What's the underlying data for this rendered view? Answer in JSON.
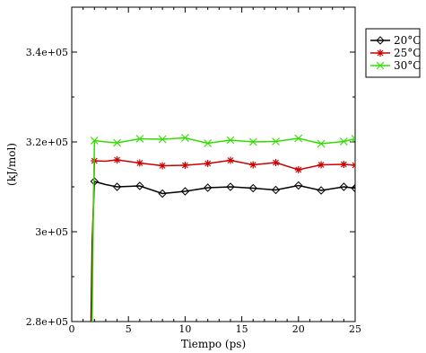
{
  "chart_data": {
    "type": "line",
    "title": "",
    "xlabel": "Tiempo (ps)",
    "ylabel": "(kJ/mol)",
    "xlim": [
      0,
      25
    ],
    "ylim": [
      280000,
      350000
    ],
    "grid": false,
    "legend_position": "top-right",
    "x_ticks": [
      0,
      5,
      10,
      15,
      20,
      25
    ],
    "x_tick_labels": [
      "0",
      "5",
      "10",
      "15",
      "20",
      "25"
    ],
    "y_ticks": [
      280000,
      300000,
      320000,
      340000
    ],
    "y_tick_labels": [
      "2.8e+05",
      "3e+05",
      "3.2e+05",
      "3.4e+05"
    ],
    "series": [
      {
        "name": "20°C",
        "color": "#000000",
        "marker": "diamond",
        "points": [
          [
            1.7,
            280000
          ],
          [
            1.8,
            298000
          ],
          [
            2,
            311200
          ],
          [
            3,
            310500
          ],
          [
            4,
            310000
          ],
          [
            6,
            310200
          ],
          [
            8,
            308500
          ],
          [
            10,
            309000
          ],
          [
            12,
            309800
          ],
          [
            14,
            310000
          ],
          [
            16,
            309700
          ],
          [
            18,
            309300
          ],
          [
            20,
            310300
          ],
          [
            22,
            309200
          ],
          [
            24,
            310000
          ],
          [
            25,
            309700
          ]
        ],
        "marker_x": [
          2,
          4,
          6,
          8,
          10,
          12,
          14,
          16,
          18,
          20,
          22,
          24,
          25
        ]
      },
      {
        "name": "25°C",
        "color": "#cc0000",
        "marker": "star",
        "points": [
          [
            1.75,
            280000
          ],
          [
            1.85,
            300000
          ],
          [
            2,
            315800
          ],
          [
            3,
            315700
          ],
          [
            4,
            316000
          ],
          [
            6,
            315300
          ],
          [
            8,
            314700
          ],
          [
            10,
            314800
          ],
          [
            12,
            315200
          ],
          [
            14,
            315900
          ],
          [
            16,
            314900
          ],
          [
            18,
            315400
          ],
          [
            20,
            313800
          ],
          [
            22,
            314900
          ],
          [
            24,
            315000
          ],
          [
            25,
            314800
          ]
        ],
        "marker_x": [
          2,
          4,
          6,
          8,
          10,
          12,
          14,
          16,
          18,
          20,
          22,
          24,
          25
        ]
      },
      {
        "name": "30°C",
        "color": "#33dd00",
        "marker": "x",
        "points": [
          [
            1.8,
            280000
          ],
          [
            1.9,
            302000
          ],
          [
            2,
            320300
          ],
          [
            3,
            320000
          ],
          [
            4,
            319800
          ],
          [
            6,
            320700
          ],
          [
            8,
            320600
          ],
          [
            10,
            320900
          ],
          [
            12,
            319700
          ],
          [
            14,
            320400
          ],
          [
            16,
            320000
          ],
          [
            18,
            320100
          ],
          [
            20,
            320800
          ],
          [
            22,
            319600
          ],
          [
            24,
            320100
          ],
          [
            25,
            320700
          ]
        ],
        "marker_x": [
          2,
          4,
          6,
          8,
          10,
          12,
          14,
          16,
          18,
          20,
          22,
          24,
          25
        ]
      }
    ]
  }
}
